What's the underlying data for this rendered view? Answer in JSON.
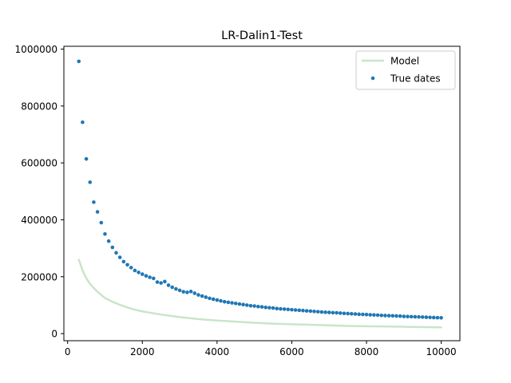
{
  "chart_data": {
    "type": "line",
    "title": "LR-Dalin1-Test",
    "xlabel": "",
    "ylabel": "",
    "xlim": [
      -100,
      10500
    ],
    "ylim": [
      -25000,
      1010000
    ],
    "x_ticks": [
      0,
      2000,
      4000,
      6000,
      8000,
      10000
    ],
    "x_tick_labels": [
      "0",
      "2000",
      "4000",
      "6000",
      "8000",
      "10000"
    ],
    "y_ticks": [
      0,
      200000,
      400000,
      600000,
      800000,
      1000000
    ],
    "y_tick_labels": [
      "0",
      "200000",
      "400000",
      "600000",
      "800000",
      "1000000"
    ],
    "grid": false,
    "legend_position": "top-right",
    "series": [
      {
        "name": "Model",
        "kind": "line",
        "color": "#c9e5c9",
        "x": [
          300,
          400,
          500,
          600,
          700,
          800,
          900,
          1000,
          1200,
          1400,
          1600,
          1800,
          2000,
          2500,
          3000,
          3500,
          4000,
          4500,
          5000,
          5500,
          6000,
          6500,
          7000,
          7500,
          8000,
          8500,
          9000,
          9500,
          10000
        ],
        "y": [
          260000,
          222000,
          195000,
          175000,
          160000,
          147000,
          136000,
          125000,
          112000,
          101000,
          92000,
          84000,
          78000,
          67000,
          58000,
          51000,
          46000,
          42000,
          38000,
          35000,
          33000,
          31000,
          29000,
          27000,
          26000,
          25000,
          24000,
          23000,
          22000
        ]
      },
      {
        "name": "True dates",
        "kind": "scatter",
        "color": "#1f77b4",
        "x": [
          300,
          400,
          500,
          600,
          700,
          800,
          900,
          1000,
          1100,
          1200,
          1300,
          1400,
          1500,
          1600,
          1700,
          1800,
          1900,
          2000,
          2100,
          2200,
          2300,
          2400,
          2500,
          2600,
          2700,
          2800,
          2900,
          3000,
          3100,
          3200,
          3300,
          3400,
          3500,
          3600,
          3700,
          3800,
          3900,
          4000,
          4100,
          4200,
          4300,
          4400,
          4500,
          4600,
          4700,
          4800,
          4900,
          5000,
          5100,
          5200,
          5300,
          5400,
          5500,
          5600,
          5700,
          5800,
          5900,
          6000,
          6100,
          6200,
          6300,
          6400,
          6500,
          6600,
          6700,
          6800,
          6900,
          7000,
          7100,
          7200,
          7300,
          7400,
          7500,
          7600,
          7700,
          7800,
          7900,
          8000,
          8100,
          8200,
          8300,
          8400,
          8500,
          8600,
          8700,
          8800,
          8900,
          9000,
          9100,
          9200,
          9300,
          9400,
          9500,
          9600,
          9700,
          9800,
          9900,
          10000
        ],
        "y": [
          957000,
          743000,
          614000,
          532000,
          462000,
          428000,
          390000,
          350000,
          325000,
          303000,
          284000,
          268000,
          253000,
          242000,
          232000,
          222000,
          215000,
          209000,
          203000,
          198000,
          194000,
          181000,
          178000,
          183000,
          170000,
          163000,
          157000,
          152000,
          147000,
          145000,
          148000,
          142000,
          136000,
          132000,
          128000,
          124000,
          121000,
          118000,
          115000,
          112000,
          110000,
          108000,
          106000,
          104000,
          102000,
          100000,
          98000,
          97000,
          95000,
          94000,
          92000,
          91000,
          90000,
          88000,
          87000,
          86000,
          85000,
          84000,
          83000,
          82000,
          81000,
          80000,
          79000,
          78000,
          77000,
          76000,
          75000,
          74500,
          73500,
          73000,
          72000,
          71000,
          70500,
          69500,
          69000,
          68000,
          67500,
          67000,
          66000,
          65500,
          65000,
          64000,
          63500,
          63000,
          62500,
          62000,
          61500,
          60500,
          60000,
          59500,
          59000,
          58500,
          58000,
          57500,
          57000,
          56500,
          56000,
          55500
        ]
      }
    ]
  }
}
